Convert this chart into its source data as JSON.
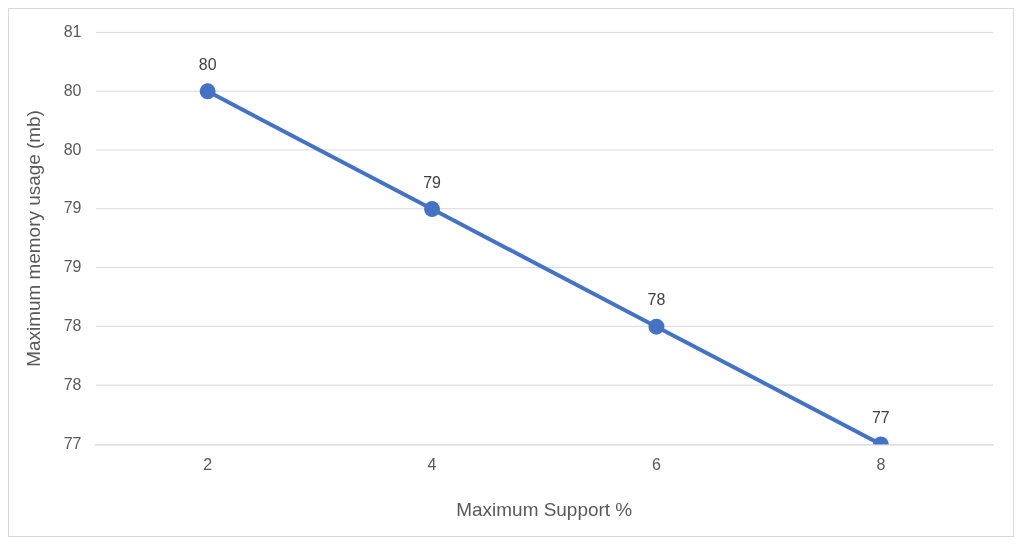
{
  "chart_data": {
    "type": "line",
    "xlabel": "Maximum Support %",
    "ylabel": "Maximum memory usage (mb)",
    "categories": [
      "2",
      "4",
      "6",
      "8"
    ],
    "series": [
      {
        "color": "#4472c4",
        "values": [
          80,
          79,
          78,
          77
        ]
      }
    ],
    "ylim": [
      77,
      80.5
    ],
    "yticks": [
      77,
      {
        "value": 77.5,
        "label": "78"
      },
      78,
      {
        "value": 78.5,
        "label": "79"
      },
      79,
      {
        "value": 79.5,
        "label": "80"
      },
      80,
      {
        "value": 80.5,
        "label": "81"
      }
    ],
    "grid": "y",
    "marker": "circle",
    "line_style": "solid",
    "data_labels": true,
    "legend": false
  }
}
